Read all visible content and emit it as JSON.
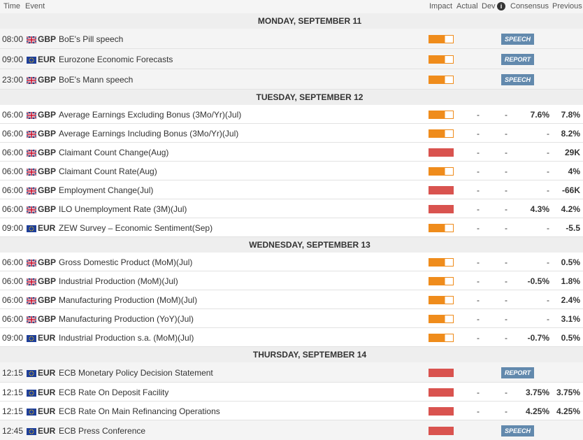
{
  "header": {
    "time": "Time",
    "event": "Event",
    "impact": "Impact",
    "actual": "Actual",
    "dev": "Dev",
    "consensus": "Consensus",
    "previous": "Previous"
  },
  "days": [
    {
      "title": "MONDAY, SEPTEMBER 11",
      "rows": [
        {
          "time": "08:00",
          "currency": "GBP",
          "event": "BoE's Pill speech",
          "impact": "medium",
          "badge": "SPEECH",
          "actual": null,
          "dev": null,
          "consensus": null,
          "previous": null
        },
        {
          "time": "09:00",
          "currency": "EUR",
          "event": "Eurozone Economic Forecasts",
          "impact": "medium",
          "badge": "REPORT",
          "actual": null,
          "dev": null,
          "consensus": null,
          "previous": null
        },
        {
          "time": "23:00",
          "currency": "GBP",
          "event": "BoE's Mann speech",
          "impact": "medium",
          "badge": "SPEECH",
          "actual": null,
          "dev": null,
          "consensus": null,
          "previous": null
        }
      ]
    },
    {
      "title": "TUESDAY, SEPTEMBER 12",
      "rows": [
        {
          "time": "06:00",
          "currency": "GBP",
          "event": "Average Earnings Excluding Bonus (3Mo/Yr)(Jul)",
          "impact": "medium",
          "badge": null,
          "actual": "-",
          "dev": "-",
          "consensus": "7.6%",
          "previous": "7.8%"
        },
        {
          "time": "06:00",
          "currency": "GBP",
          "event": "Average Earnings Including Bonus (3Mo/Yr)(Jul)",
          "impact": "medium",
          "badge": null,
          "actual": "-",
          "dev": "-",
          "consensus": "-",
          "previous": "8.2%"
        },
        {
          "time": "06:00",
          "currency": "GBP",
          "event": "Claimant Count Change(Aug)",
          "impact": "high",
          "badge": null,
          "actual": "-",
          "dev": "-",
          "consensus": "-",
          "previous": "29K"
        },
        {
          "time": "06:00",
          "currency": "GBP",
          "event": "Claimant Count Rate(Aug)",
          "impact": "medium",
          "badge": null,
          "actual": "-",
          "dev": "-",
          "consensus": "-",
          "previous": "4%"
        },
        {
          "time": "06:00",
          "currency": "GBP",
          "event": "Employment Change(Jul)",
          "impact": "high",
          "badge": null,
          "actual": "-",
          "dev": "-",
          "consensus": "-",
          "previous": "-66K"
        },
        {
          "time": "06:00",
          "currency": "GBP",
          "event": "ILO Unemployment Rate (3M)(Jul)",
          "impact": "high",
          "badge": null,
          "actual": "-",
          "dev": "-",
          "consensus": "4.3%",
          "previous": "4.2%"
        },
        {
          "time": "09:00",
          "currency": "EUR",
          "event": "ZEW Survey – Economic Sentiment(Sep)",
          "impact": "medium",
          "badge": null,
          "actual": "-",
          "dev": "-",
          "consensus": "-",
          "previous": "-5.5"
        }
      ]
    },
    {
      "title": "WEDNESDAY, SEPTEMBER 13",
      "rows": [
        {
          "time": "06:00",
          "currency": "GBP",
          "event": "Gross Domestic Product (MoM)(Jul)",
          "impact": "medium",
          "badge": null,
          "actual": "-",
          "dev": "-",
          "consensus": "-",
          "previous": "0.5%"
        },
        {
          "time": "06:00",
          "currency": "GBP",
          "event": "Industrial Production (MoM)(Jul)",
          "impact": "medium",
          "badge": null,
          "actual": "-",
          "dev": "-",
          "consensus": "-0.5%",
          "previous": "1.8%"
        },
        {
          "time": "06:00",
          "currency": "GBP",
          "event": "Manufacturing Production (MoM)(Jul)",
          "impact": "medium",
          "badge": null,
          "actual": "-",
          "dev": "-",
          "consensus": "-",
          "previous": "2.4%"
        },
        {
          "time": "06:00",
          "currency": "GBP",
          "event": "Manufacturing Production (YoY)(Jul)",
          "impact": "medium",
          "badge": null,
          "actual": "-",
          "dev": "-",
          "consensus": "-",
          "previous": "3.1%"
        },
        {
          "time": "09:00",
          "currency": "EUR",
          "event": "Industrial Production s.a. (MoM)(Jul)",
          "impact": "medium",
          "badge": null,
          "actual": "-",
          "dev": "-",
          "consensus": "-0.7%",
          "previous": "0.5%"
        }
      ]
    },
    {
      "title": "THURSDAY, SEPTEMBER 14",
      "rows": [
        {
          "time": "12:15",
          "currency": "EUR",
          "event": "ECB Monetary Policy Decision Statement",
          "impact": "high",
          "badge": "REPORT",
          "actual": null,
          "dev": null,
          "consensus": null,
          "previous": null
        },
        {
          "time": "12:15",
          "currency": "EUR",
          "event": "ECB Rate On Deposit Facility",
          "impact": "high",
          "badge": null,
          "actual": "-",
          "dev": "-",
          "consensus": "3.75%",
          "previous": "3.75%"
        },
        {
          "time": "12:15",
          "currency": "EUR",
          "event": "ECB Rate On Main Refinancing Operations",
          "impact": "high",
          "badge": null,
          "actual": "-",
          "dev": "-",
          "consensus": "4.25%",
          "previous": "4.25%"
        },
        {
          "time": "12:45",
          "currency": "EUR",
          "event": "ECB Press Conference",
          "impact": "high",
          "badge": "SPEECH",
          "actual": null,
          "dev": null,
          "consensus": null,
          "previous": null
        }
      ]
    }
  ]
}
